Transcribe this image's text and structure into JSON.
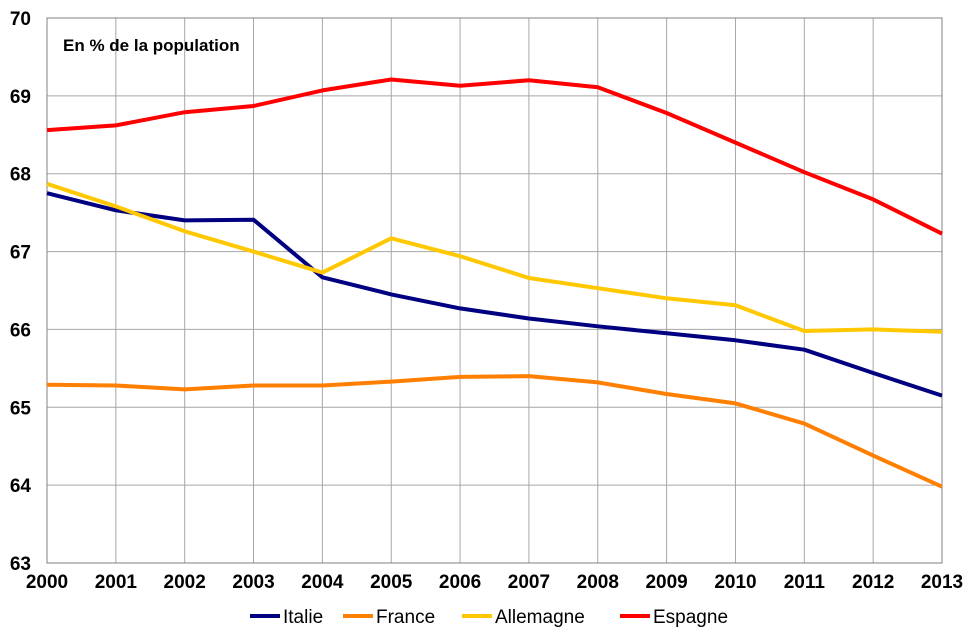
{
  "chart_data": {
    "type": "line",
    "title": "",
    "annotation": "En % de la population",
    "xlabel": "",
    "ylabel": "",
    "x": [
      2000,
      2001,
      2002,
      2003,
      2004,
      2005,
      2006,
      2007,
      2008,
      2009,
      2010,
      2011,
      2012,
      2013
    ],
    "x_tick_labels": [
      "2000",
      "2001",
      "2002",
      "2003",
      "2004",
      "2005",
      "2006",
      "2007",
      "2008",
      "2009",
      "2010",
      "2011",
      "2012",
      "2013"
    ],
    "xlim": [
      2000,
      2013
    ],
    "ylim": [
      63,
      70
    ],
    "y_tick_labels": [
      "63",
      "64",
      "65",
      "66",
      "67",
      "68",
      "69",
      "70"
    ],
    "grid": true,
    "legend_position": "bottom",
    "series": [
      {
        "name": "Italie",
        "color": "#000080",
        "values": [
          67.75,
          67.53,
          67.4,
          67.41,
          66.67,
          66.45,
          66.27,
          66.14,
          66.04,
          65.95,
          65.86,
          65.74,
          65.44,
          65.15
        ]
      },
      {
        "name": "France",
        "color": "#FF7F00",
        "values": [
          65.29,
          65.28,
          65.23,
          65.28,
          65.28,
          65.33,
          65.39,
          65.4,
          65.32,
          65.17,
          65.05,
          64.79,
          64.38,
          63.98
        ]
      },
      {
        "name": "Allemagne",
        "color": "#FFC800",
        "values": [
          67.87,
          67.58,
          67.26,
          67.0,
          66.73,
          67.17,
          66.94,
          66.66,
          66.53,
          66.4,
          66.31,
          65.98,
          66.0,
          65.97
        ]
      },
      {
        "name": "Espagne",
        "color": "#FF0000",
        "values": [
          68.56,
          68.62,
          68.79,
          68.87,
          69.07,
          69.21,
          69.13,
          69.2,
          69.11,
          68.78,
          68.4,
          68.02,
          67.67,
          67.23
        ]
      }
    ]
  }
}
